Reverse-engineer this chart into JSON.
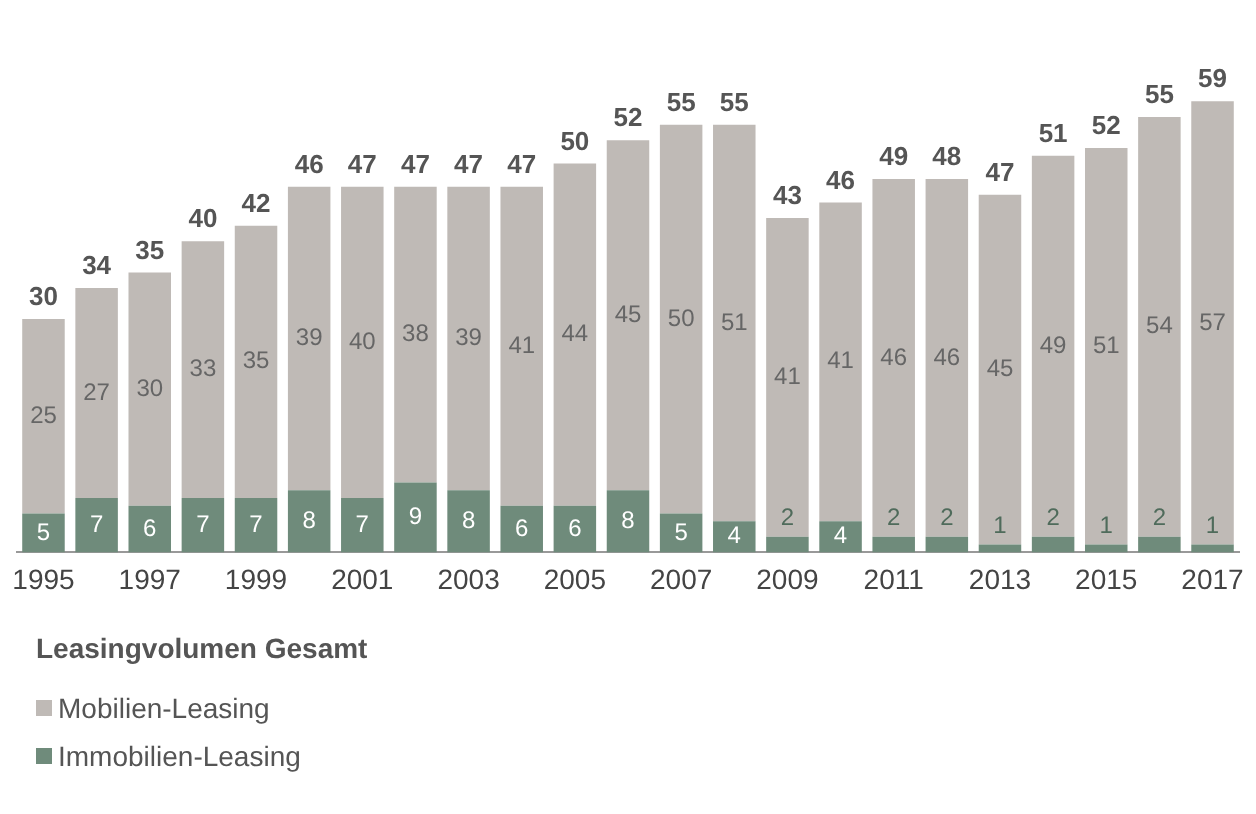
{
  "chart_data": {
    "type": "bar",
    "stacked": true,
    "legend": "bottom",
    "legend_title": "Leasingvolumen Gesamt",
    "data_labels": true,
    "grid": false,
    "categories": [
      "1995",
      null,
      "1997",
      null,
      "1999",
      null,
      "2001",
      null,
      "2003",
      null,
      "2005",
      null,
      "2007",
      null,
      "2009",
      null,
      "2011",
      null,
      "2013",
      null,
      "2015",
      null,
      "2017"
    ],
    "series": [
      {
        "name": "Immobilien-Leasing",
        "color": "#6f8b7b",
        "values": [
          5,
          7,
          6,
          7,
          7,
          8,
          7,
          9,
          8,
          6,
          6,
          8,
          5,
          4,
          2,
          4,
          2,
          2,
          1,
          2,
          1,
          2,
          1
        ]
      },
      {
        "name": "Mobilien-Leasing",
        "color": "#bfbab6",
        "values": [
          25,
          27,
          30,
          33,
          35,
          39,
          40,
          38,
          39,
          41,
          44,
          45,
          50,
          51,
          41,
          41,
          46,
          46,
          45,
          49,
          51,
          54,
          57
        ]
      }
    ],
    "totals": [
      "30",
      "34",
      "35",
      "40",
      "42",
      "46",
      "47",
      "47",
      "47",
      "47",
      "50",
      "52",
      "55",
      "55",
      "43",
      "46",
      "49",
      "48",
      "47",
      "51",
      "52",
      "55",
      "59"
    ]
  }
}
